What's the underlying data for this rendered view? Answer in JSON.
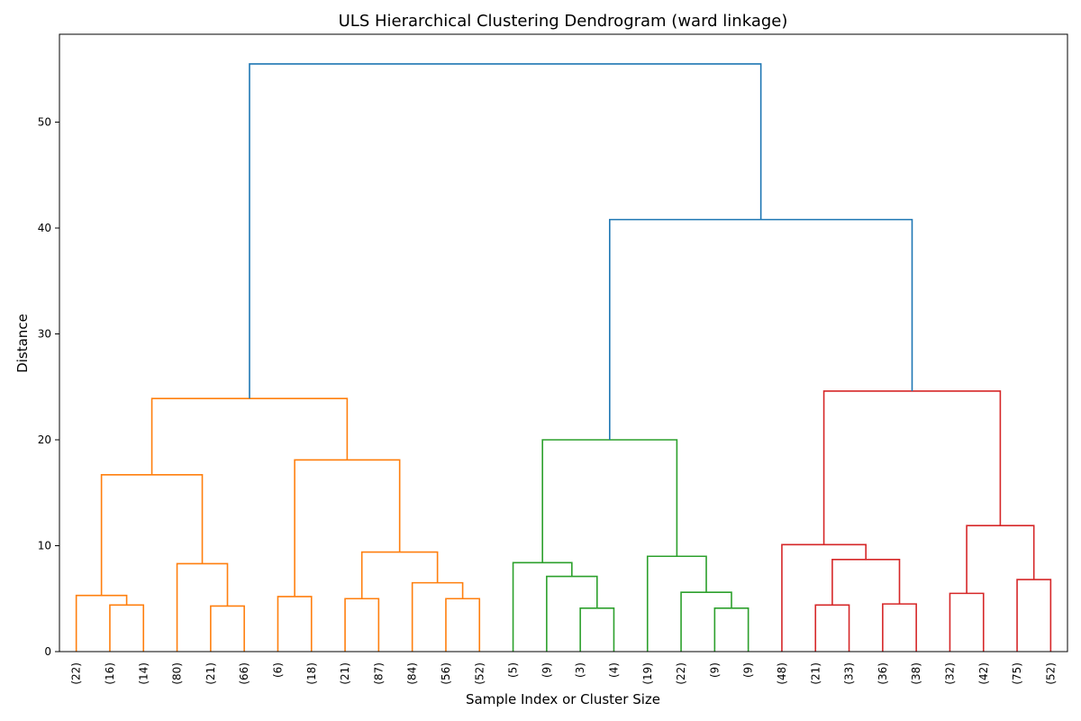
{
  "chart_data": {
    "type": "dendrogram",
    "title": "ULS Hierarchical Clustering Dendrogram (ward linkage)",
    "xlabel": "Sample Index or Cluster Size",
    "ylabel": "Distance",
    "ylim": [
      0,
      58.3
    ],
    "yticks": [
      0,
      10,
      20,
      30,
      40,
      50
    ],
    "grid": false,
    "colors": {
      "orange": "#ff7f0e",
      "green": "#2ca02c",
      "red": "#d62728",
      "blue": "#1f77b4"
    },
    "leaves": [
      "(22)",
      "(16)",
      "(14)",
      "(80)",
      "(21)",
      "(66)",
      "(6)",
      "(18)",
      "(21)",
      "(87)",
      "(84)",
      "(56)",
      "(52)",
      "(5)",
      "(9)",
      "(3)",
      "(4)",
      "(19)",
      "(22)",
      "(9)",
      "(9)",
      "(48)",
      "(21)",
      "(33)",
      "(36)",
      "(38)",
      "(32)",
      "(42)",
      "(75)",
      "(52)"
    ],
    "links": [
      {
        "left": 1,
        "right": 2,
        "height": 4.4,
        "color": "orange"
      },
      {
        "left": 0,
        "right": 1.5,
        "height": 5.3,
        "color": "orange"
      },
      {
        "left": 4,
        "right": 5,
        "height": 4.3,
        "color": "orange"
      },
      {
        "left": 3,
        "right": 4.5,
        "height": 8.3,
        "color": "orange"
      },
      {
        "left": 0.75,
        "right": 3.75,
        "height": 16.7,
        "color": "orange"
      },
      {
        "left": 6,
        "right": 7,
        "height": 5.2,
        "color": "orange"
      },
      {
        "left": 8,
        "right": 9,
        "height": 5.0,
        "color": "orange"
      },
      {
        "left": 11,
        "right": 12,
        "height": 5.0,
        "color": "orange"
      },
      {
        "left": 10,
        "right": 11.5,
        "height": 6.5,
        "color": "orange"
      },
      {
        "left": 8.5,
        "right": 10.75,
        "height": 9.4,
        "color": "orange"
      },
      {
        "left": 6.5,
        "right": 9.625,
        "height": 18.1,
        "color": "orange"
      },
      {
        "left": 2.25,
        "right": 8.0625,
        "height": 23.9,
        "color": "orange"
      },
      {
        "left": 15,
        "right": 16,
        "height": 4.1,
        "color": "green"
      },
      {
        "left": 14,
        "right": 15.5,
        "height": 7.1,
        "color": "green"
      },
      {
        "left": 13,
        "right": 14.75,
        "height": 8.4,
        "color": "green"
      },
      {
        "left": 19,
        "right": 20,
        "height": 4.1,
        "color": "green"
      },
      {
        "left": 18,
        "right": 19.5,
        "height": 5.6,
        "color": "green"
      },
      {
        "left": 17,
        "right": 18.75,
        "height": 9.0,
        "color": "green"
      },
      {
        "left": 13.875,
        "right": 17.875,
        "height": 20.0,
        "color": "green"
      },
      {
        "left": 22,
        "right": 23,
        "height": 4.4,
        "color": "red"
      },
      {
        "left": 24,
        "right": 25,
        "height": 4.5,
        "color": "red"
      },
      {
        "left": 22.5,
        "right": 24.5,
        "height": 8.7,
        "color": "red"
      },
      {
        "left": 21,
        "right": 23.5,
        "height": 10.1,
        "color": "red"
      },
      {
        "left": 26,
        "right": 27,
        "height": 5.5,
        "color": "red"
      },
      {
        "left": 28,
        "right": 29,
        "height": 6.8,
        "color": "red"
      },
      {
        "left": 26.5,
        "right": 28.5,
        "height": 11.9,
        "color": "red"
      },
      {
        "left": 22.25,
        "right": 27.5,
        "height": 24.6,
        "color": "red"
      },
      {
        "left": 15.875,
        "right": 24.875,
        "height": 40.8,
        "color": "blue"
      },
      {
        "left": 5.15625,
        "right": 20.375,
        "height": 55.5,
        "color": "blue"
      }
    ]
  }
}
